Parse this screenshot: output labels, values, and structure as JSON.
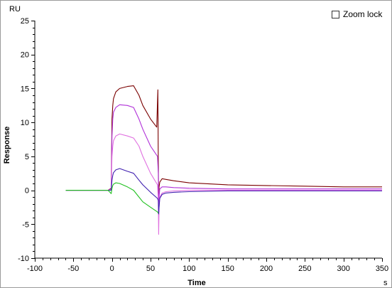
{
  "zoom_lock": {
    "label": "Zoom lock",
    "checked": false
  },
  "chart_data": {
    "type": "line",
    "title": "",
    "xlabel": "Time",
    "ylabel": "Response",
    "x_unit": "s",
    "y_unit": "RU",
    "xlim": [
      -100,
      350
    ],
    "ylim": [
      -10,
      25
    ],
    "x_ticks": [
      -100,
      -50,
      0,
      50,
      100,
      150,
      200,
      250,
      300,
      350
    ],
    "y_ticks": [
      -10,
      -5,
      0,
      5,
      10,
      15,
      20,
      25
    ],
    "grid": false,
    "legend": "none",
    "series": [
      {
        "color": "#7a0000",
        "x": [
          -60,
          -5,
          -1,
          0,
          1,
          2,
          5,
          10,
          20,
          28,
          35,
          40,
          50,
          58,
          59.5,
          60,
          60.5,
          61,
          62,
          65,
          70,
          80,
          100,
          150,
          200,
          250,
          300,
          350
        ],
        "y": [
          0,
          0,
          0.3,
          10.5,
          12.5,
          13.5,
          14.5,
          15.0,
          15.3,
          15.4,
          14.0,
          12.5,
          10.5,
          9.3,
          14.8,
          4.0,
          -1.0,
          0.5,
          1.2,
          1.7,
          1.6,
          1.4,
          1.1,
          0.8,
          0.7,
          0.6,
          0.5,
          0.5
        ]
      },
      {
        "color": "#b030d8",
        "x": [
          -60,
          -5,
          -1,
          0,
          1,
          2,
          5,
          10,
          20,
          28,
          35,
          40,
          50,
          59,
          60,
          60.5,
          61,
          62,
          65,
          70,
          80,
          100,
          150,
          200,
          250,
          300,
          350
        ],
        "y": [
          0,
          0,
          0.2,
          8.0,
          10.5,
          11.5,
          12.2,
          12.6,
          12.5,
          12.2,
          10.5,
          9.0,
          6.5,
          5.0,
          2.5,
          -2.5,
          -1.0,
          0.2,
          0.5,
          0.5,
          0.4,
          0.3,
          0.2,
          0.2,
          0.2,
          0.2,
          0.2
        ]
      },
      {
        "color": "#e070e0",
        "x": [
          -60,
          -5,
          -1,
          0,
          1,
          2,
          5,
          10,
          20,
          28,
          35,
          40,
          50,
          59,
          60,
          60.5,
          61,
          62,
          65,
          70,
          80,
          100,
          150,
          200,
          250,
          300,
          350
        ],
        "y": [
          0,
          0,
          0.1,
          5.0,
          6.5,
          7.3,
          8.0,
          8.3,
          8.0,
          7.7,
          6.5,
          5.0,
          2.5,
          0.8,
          -1.5,
          -6.5,
          -2.5,
          -1.0,
          -0.4,
          -0.2,
          -0.1,
          0,
          0,
          0,
          0,
          0,
          0
        ]
      },
      {
        "color": "#4020b0",
        "x": [
          -60,
          -5,
          -1,
          0,
          1,
          2,
          5,
          10,
          20,
          28,
          35,
          40,
          50,
          59,
          60,
          60.5,
          61,
          62,
          65,
          70,
          80,
          100,
          150,
          200,
          250,
          300,
          350
        ],
        "y": [
          0,
          0,
          0,
          1.5,
          2.2,
          2.6,
          3.0,
          3.2,
          2.8,
          2.5,
          1.5,
          0.8,
          -0.3,
          -1.2,
          -1.5,
          -3.5,
          -2.5,
          -1.2,
          -0.6,
          -0.4,
          -0.3,
          -0.2,
          -0.1,
          -0.1,
          -0.1,
          -0.1,
          -0.1
        ]
      },
      {
        "color": "#20c020",
        "x": [
          -60,
          -5,
          -1,
          0,
          1,
          2,
          5,
          10,
          20,
          28,
          35,
          40,
          50,
          59,
          60
        ],
        "y": [
          0,
          0,
          -0.5,
          0.3,
          0.7,
          0.9,
          1.1,
          1.0,
          0.5,
          0,
          -1.0,
          -1.7,
          -2.5,
          -3.2,
          -3.4
        ]
      }
    ]
  }
}
